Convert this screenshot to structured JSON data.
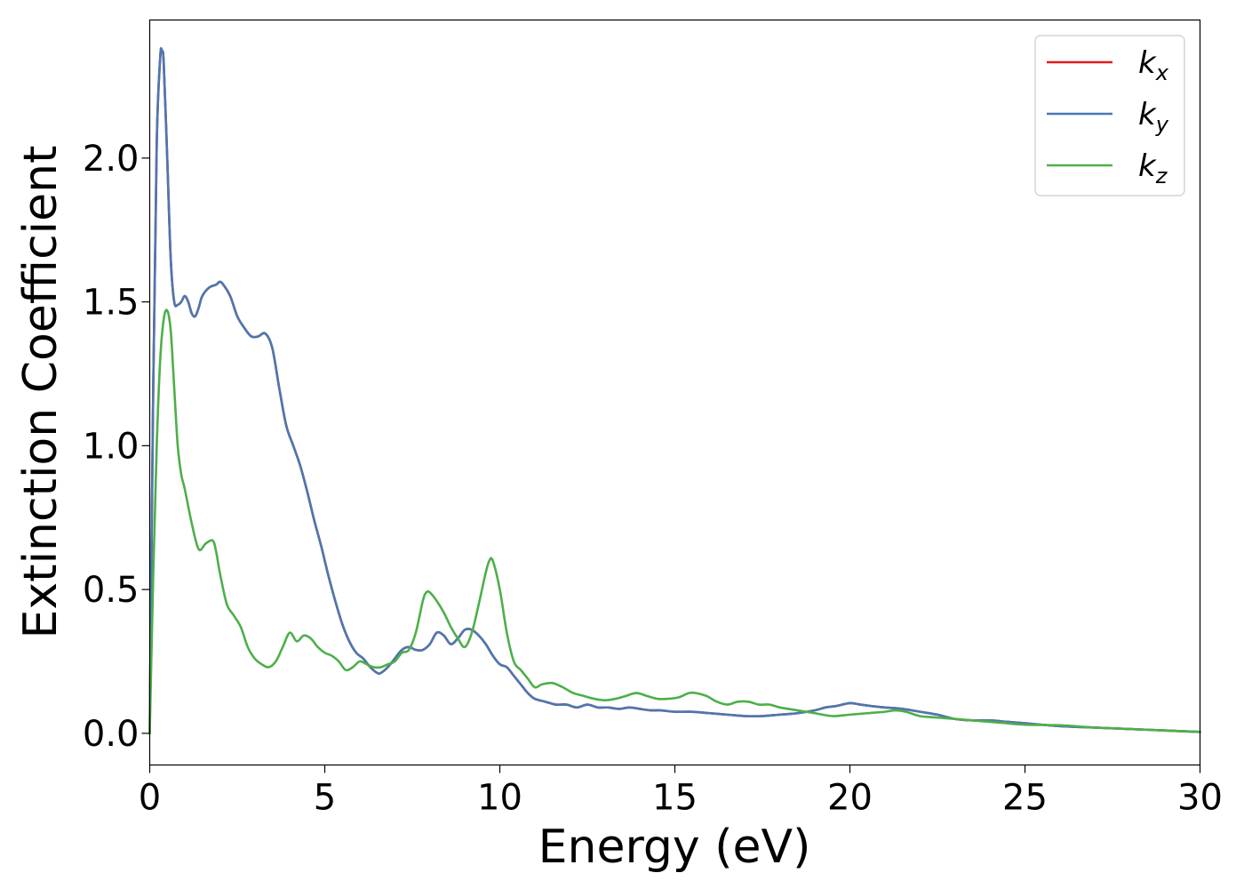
{
  "chart_data": {
    "type": "line",
    "xlabel": "Energy (eV)",
    "ylabel": "Extinction Coefficient",
    "xlim": [
      0,
      30
    ],
    "ylim": [
      -0.11,
      2.48
    ],
    "xticks": [
      0,
      5,
      10,
      15,
      20,
      25,
      30
    ],
    "yticks": [
      0.0,
      0.5,
      1.0,
      1.5,
      2.0
    ],
    "xtick_labels": [
      "0",
      "5",
      "10",
      "15",
      "20",
      "25",
      "30"
    ],
    "ytick_labels": [
      "0.0",
      "0.5",
      "1.0",
      "1.5",
      "2.0"
    ],
    "grid": false,
    "legend_position": "top-right",
    "series": [
      {
        "name": "k_x",
        "label_base": "k",
        "label_sub": "x",
        "color": "#e41a1c",
        "x": [
          0,
          0.1,
          0.2,
          0.3,
          0.35,
          0.4,
          0.5,
          0.6,
          0.7,
          0.8,
          0.9,
          1.0,
          1.1,
          1.2,
          1.3,
          1.4,
          1.5,
          1.7,
          1.9,
          2.0,
          2.1,
          2.3,
          2.5,
          2.7,
          2.9,
          3.1,
          3.3,
          3.5,
          3.7,
          3.9,
          4.1,
          4.3,
          4.5,
          4.7,
          4.9,
          5.1,
          5.3,
          5.5,
          5.7,
          5.9,
          6.1,
          6.3,
          6.5,
          6.6,
          6.8,
          7.0,
          7.2,
          7.4,
          7.6,
          7.8,
          8.0,
          8.2,
          8.4,
          8.6,
          8.8,
          9.0,
          9.2,
          9.4,
          9.6,
          9.8,
          10.0,
          10.2,
          10.4,
          10.6,
          10.8,
          11.0,
          11.3,
          11.6,
          11.9,
          12.2,
          12.5,
          12.8,
          13.1,
          13.4,
          13.7,
          14.0,
          14.3,
          14.6,
          15.0,
          15.5,
          16.0,
          16.5,
          17.0,
          17.5,
          18.0,
          18.5,
          19.0,
          19.3,
          19.6,
          20.0,
          20.3,
          20.6,
          21.0,
          21.5,
          22.0,
          22.5,
          23.0,
          23.5,
          24.0,
          24.5,
          25.0,
          26.0,
          27.0,
          28.0,
          29.0,
          30.0
        ],
        "values": [
          0.0,
          1.2,
          2.05,
          2.35,
          2.37,
          2.33,
          2.0,
          1.65,
          1.5,
          1.49,
          1.5,
          1.52,
          1.5,
          1.46,
          1.45,
          1.48,
          1.52,
          1.55,
          1.56,
          1.57,
          1.56,
          1.52,
          1.45,
          1.41,
          1.38,
          1.38,
          1.39,
          1.34,
          1.2,
          1.07,
          1.0,
          0.93,
          0.84,
          0.74,
          0.65,
          0.55,
          0.46,
          0.38,
          0.32,
          0.28,
          0.26,
          0.23,
          0.21,
          0.21,
          0.23,
          0.26,
          0.29,
          0.3,
          0.29,
          0.29,
          0.31,
          0.35,
          0.34,
          0.31,
          0.33,
          0.36,
          0.36,
          0.34,
          0.31,
          0.27,
          0.24,
          0.23,
          0.2,
          0.17,
          0.14,
          0.12,
          0.11,
          0.1,
          0.1,
          0.09,
          0.1,
          0.09,
          0.09,
          0.085,
          0.09,
          0.085,
          0.08,
          0.08,
          0.075,
          0.075,
          0.07,
          0.065,
          0.06,
          0.06,
          0.065,
          0.07,
          0.08,
          0.09,
          0.095,
          0.105,
          0.1,
          0.095,
          0.09,
          0.085,
          0.075,
          0.065,
          0.05,
          0.045,
          0.045,
          0.04,
          0.035,
          0.025,
          0.02,
          0.015,
          0.01,
          0.005
        ]
      },
      {
        "name": "k_y",
        "label_base": "k",
        "label_sub": "y",
        "color": "#4a78b0",
        "x": [
          0,
          0.1,
          0.2,
          0.3,
          0.35,
          0.4,
          0.5,
          0.6,
          0.7,
          0.8,
          0.9,
          1.0,
          1.1,
          1.2,
          1.3,
          1.4,
          1.5,
          1.7,
          1.9,
          2.0,
          2.1,
          2.3,
          2.5,
          2.7,
          2.9,
          3.1,
          3.3,
          3.5,
          3.7,
          3.9,
          4.1,
          4.3,
          4.5,
          4.7,
          4.9,
          5.1,
          5.3,
          5.5,
          5.7,
          5.9,
          6.1,
          6.3,
          6.5,
          6.6,
          6.8,
          7.0,
          7.2,
          7.4,
          7.6,
          7.8,
          8.0,
          8.2,
          8.4,
          8.6,
          8.8,
          9.0,
          9.2,
          9.4,
          9.6,
          9.8,
          10.0,
          10.2,
          10.4,
          10.6,
          10.8,
          11.0,
          11.3,
          11.6,
          11.9,
          12.2,
          12.5,
          12.8,
          13.1,
          13.4,
          13.7,
          14.0,
          14.3,
          14.6,
          15.0,
          15.5,
          16.0,
          16.5,
          17.0,
          17.5,
          18.0,
          18.5,
          19.0,
          19.3,
          19.6,
          20.0,
          20.3,
          20.6,
          21.0,
          21.5,
          22.0,
          22.5,
          23.0,
          23.5,
          24.0,
          24.5,
          25.0,
          26.0,
          27.0,
          28.0,
          29.0,
          30.0
        ],
        "values": [
          0.0,
          1.2,
          2.05,
          2.35,
          2.37,
          2.33,
          2.0,
          1.65,
          1.5,
          1.49,
          1.5,
          1.52,
          1.5,
          1.46,
          1.45,
          1.48,
          1.52,
          1.55,
          1.56,
          1.57,
          1.56,
          1.52,
          1.45,
          1.41,
          1.38,
          1.38,
          1.39,
          1.34,
          1.2,
          1.07,
          1.0,
          0.93,
          0.84,
          0.74,
          0.65,
          0.55,
          0.46,
          0.38,
          0.32,
          0.28,
          0.26,
          0.23,
          0.21,
          0.21,
          0.23,
          0.26,
          0.29,
          0.3,
          0.29,
          0.29,
          0.31,
          0.35,
          0.34,
          0.31,
          0.33,
          0.36,
          0.36,
          0.34,
          0.31,
          0.27,
          0.24,
          0.23,
          0.2,
          0.17,
          0.14,
          0.12,
          0.11,
          0.1,
          0.1,
          0.09,
          0.1,
          0.09,
          0.09,
          0.085,
          0.09,
          0.085,
          0.08,
          0.08,
          0.075,
          0.075,
          0.07,
          0.065,
          0.06,
          0.06,
          0.065,
          0.07,
          0.08,
          0.09,
          0.095,
          0.105,
          0.1,
          0.095,
          0.09,
          0.085,
          0.075,
          0.065,
          0.05,
          0.045,
          0.045,
          0.04,
          0.035,
          0.025,
          0.02,
          0.015,
          0.01,
          0.005
        ]
      },
      {
        "name": "k_z",
        "label_base": "k",
        "label_sub": "z",
        "color": "#4daf4a",
        "x": [
          0,
          0.1,
          0.2,
          0.3,
          0.4,
          0.5,
          0.6,
          0.7,
          0.8,
          0.9,
          1.0,
          1.2,
          1.4,
          1.6,
          1.8,
          1.9,
          2.0,
          2.2,
          2.4,
          2.6,
          2.8,
          3.0,
          3.2,
          3.4,
          3.6,
          3.8,
          4.0,
          4.2,
          4.4,
          4.6,
          4.8,
          5.0,
          5.2,
          5.4,
          5.6,
          5.8,
          6.0,
          6.2,
          6.4,
          6.6,
          6.8,
          7.0,
          7.2,
          7.4,
          7.6,
          7.8,
          7.9,
          8.0,
          8.2,
          8.4,
          8.6,
          8.8,
          9.0,
          9.2,
          9.4,
          9.6,
          9.7,
          9.8,
          10.0,
          10.2,
          10.4,
          10.6,
          10.8,
          11.0,
          11.2,
          11.5,
          11.8,
          12.1,
          12.4,
          12.7,
          13.0,
          13.3,
          13.6,
          13.9,
          14.2,
          14.5,
          14.8,
          15.1,
          15.4,
          15.6,
          15.9,
          16.2,
          16.5,
          16.8,
          17.1,
          17.4,
          17.7,
          18.0,
          18.5,
          19.0,
          19.5,
          20.0,
          20.5,
          21.0,
          21.3,
          21.6,
          22.0,
          22.5,
          23.0,
          23.5,
          24.0,
          24.5,
          25.0,
          26.0,
          27.0,
          28.0,
          29.0,
          30.0
        ],
        "values": [
          0.0,
          0.55,
          1.0,
          1.3,
          1.44,
          1.47,
          1.4,
          1.2,
          1.0,
          0.9,
          0.85,
          0.73,
          0.64,
          0.66,
          0.67,
          0.63,
          0.56,
          0.45,
          0.41,
          0.37,
          0.3,
          0.26,
          0.24,
          0.23,
          0.25,
          0.3,
          0.35,
          0.32,
          0.34,
          0.33,
          0.3,
          0.28,
          0.27,
          0.25,
          0.22,
          0.23,
          0.25,
          0.24,
          0.23,
          0.23,
          0.24,
          0.25,
          0.28,
          0.29,
          0.35,
          0.46,
          0.49,
          0.49,
          0.46,
          0.42,
          0.37,
          0.33,
          0.3,
          0.35,
          0.45,
          0.56,
          0.6,
          0.6,
          0.5,
          0.35,
          0.25,
          0.22,
          0.19,
          0.16,
          0.17,
          0.175,
          0.16,
          0.14,
          0.13,
          0.12,
          0.115,
          0.12,
          0.13,
          0.14,
          0.13,
          0.12,
          0.12,
          0.125,
          0.14,
          0.14,
          0.13,
          0.11,
          0.1,
          0.11,
          0.11,
          0.1,
          0.1,
          0.09,
          0.08,
          0.07,
          0.06,
          0.065,
          0.07,
          0.075,
          0.08,
          0.075,
          0.06,
          0.055,
          0.05,
          0.045,
          0.04,
          0.035,
          0.03,
          0.028,
          0.02,
          0.015,
          0.01,
          0.005
        ]
      }
    ]
  }
}
